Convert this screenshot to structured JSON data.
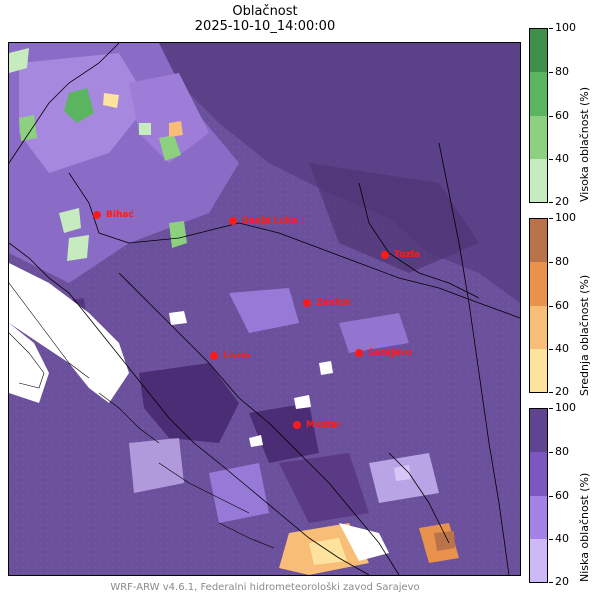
{
  "title": "Oblačnost",
  "subtitle": "2025-10-10_14:00:00",
  "footer": "WRF-ARW v4.6.1, Federalni hidrometeorološki zavod Sarajevo",
  "colorbars": [
    {
      "label": "Visoka oblačnost (%)",
      "ticks": [
        "100",
        "80",
        "60",
        "40",
        "20"
      ],
      "colors": [
        "#3e8f49",
        "#5bb560",
        "#8dd07f",
        "#c5ebbf"
      ]
    },
    {
      "label": "Srednja oblačnost (%)",
      "ticks": [
        "100",
        "80",
        "60",
        "40",
        "20"
      ],
      "colors": [
        "#b8734a",
        "#e8924d",
        "#f8bd76",
        "#fde39d"
      ]
    },
    {
      "label": "Niska oblačnost (%)",
      "ticks": [
        "100",
        "80",
        "60",
        "40",
        "20"
      ],
      "colors": [
        "#5e4491",
        "#7d56c2",
        "#a384e6",
        "#cdb9f7"
      ]
    }
  ],
  "cities": [
    {
      "name": "Bihać"
    },
    {
      "name": "Banja Luka"
    },
    {
      "name": "Tuzla"
    },
    {
      "name": "Zenica"
    },
    {
      "name": "Livno"
    },
    {
      "name": "Sarajevo"
    },
    {
      "name": "Mostar"
    }
  ]
}
